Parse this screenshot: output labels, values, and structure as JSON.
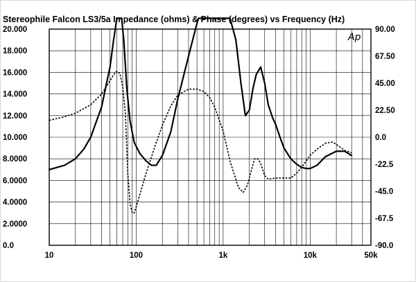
{
  "chart_data": {
    "type": "line",
    "title": "Stereophile  Falcon LS3/5a Impedance (ohms) & Phase (degrees) vs Frequency (Hz)",
    "watermark": "Ap",
    "x_scale": "log",
    "xlim": [
      10,
      50000
    ],
    "x_tick_labels": [
      {
        "value": 10,
        "label": "10"
      },
      {
        "value": 100,
        "label": "100"
      },
      {
        "value": 1000,
        "label": "1k"
      },
      {
        "value": 10000,
        "label": "10k"
      },
      {
        "value": 50000,
        "label": "50k"
      }
    ],
    "y_left_lim": [
      0,
      20
    ],
    "y_left_tick_labels": [
      "0.0",
      "2.0000",
      "4.0000",
      "6.0000",
      "8.0000",
      "10.000",
      "12.000",
      "14.000",
      "16.000",
      "18.000",
      "20.000"
    ],
    "y_right_lim": [
      -90,
      90
    ],
    "y_right_tick_labels": [
      "-90.0",
      "-67.5",
      "-45.0",
      "-22.5",
      "0.0",
      "22.50",
      "45.00",
      "67.50",
      "90.00"
    ],
    "grid": true,
    "colors": {
      "background": "#ffffff",
      "line": "#000000",
      "grid": "#000000"
    },
    "series": [
      {
        "axis": "left",
        "style": "solid",
        "x": [
          10,
          15,
          20,
          25,
          30,
          40,
          50,
          55,
          60,
          64,
          68,
          72,
          78,
          85,
          95,
          110,
          130,
          150,
          170,
          200,
          250,
          300,
          400,
          480,
          520,
          600,
          700,
          800,
          900,
          1000,
          1100,
          1200,
          1400,
          1600,
          1800,
          2000,
          2200,
          2400,
          2700,
          3000,
          3300,
          3700,
          4000,
          4500,
          5000,
          6000,
          7000,
          8000,
          9000,
          10000,
          12000,
          15000,
          20000,
          25000,
          30000
        ],
        "y": [
          7.0,
          7.4,
          8.0,
          8.9,
          10.0,
          12.8,
          16.5,
          19.0,
          21.0,
          21.0,
          21.0,
          19.0,
          14.5,
          11.5,
          9.5,
          8.5,
          7.8,
          7.4,
          7.4,
          8.3,
          10.5,
          13.5,
          17.5,
          20.0,
          21.0,
          21.0,
          21.0,
          21.0,
          21.0,
          21.0,
          21.0,
          21.0,
          19.0,
          15.0,
          12.0,
          12.5,
          14.5,
          15.8,
          16.5,
          15.0,
          13.0,
          11.8,
          11.2,
          10.0,
          9.0,
          8.0,
          7.5,
          7.2,
          7.1,
          7.1,
          7.4,
          8.2,
          8.7,
          8.7,
          8.3
        ]
      },
      {
        "axis": "right",
        "style": "dotted",
        "x": [
          10,
          15,
          20,
          30,
          40,
          50,
          55,
          60,
          65,
          70,
          75,
          80,
          85,
          90,
          95,
          100,
          110,
          130,
          160,
          200,
          250,
          300,
          400,
          450,
          500,
          600,
          700,
          800,
          1000,
          1200,
          1500,
          1700,
          1900,
          2100,
          2300,
          2500,
          2700,
          3000,
          3300,
          4000,
          5000,
          6000,
          7000,
          8000,
          9000,
          10000,
          12000,
          15000,
          18000,
          20000,
          25000,
          30000
        ],
        "y": [
          14,
          17,
          20,
          27,
          36,
          47,
          52,
          55,
          53,
          42,
          20,
          -30,
          -55,
          -63,
          -63,
          -58,
          -48,
          -30,
          -10,
          10,
          26,
          35,
          40,
          40,
          40,
          38,
          33,
          25,
          5,
          -20,
          -42,
          -46,
          -40,
          -28,
          -18,
          -18,
          -22,
          -32,
          -35,
          -34,
          -34,
          -34,
          -30,
          -25,
          -20,
          -15,
          -10,
          -5,
          -4,
          -6,
          -11,
          -13
        ]
      }
    ]
  }
}
